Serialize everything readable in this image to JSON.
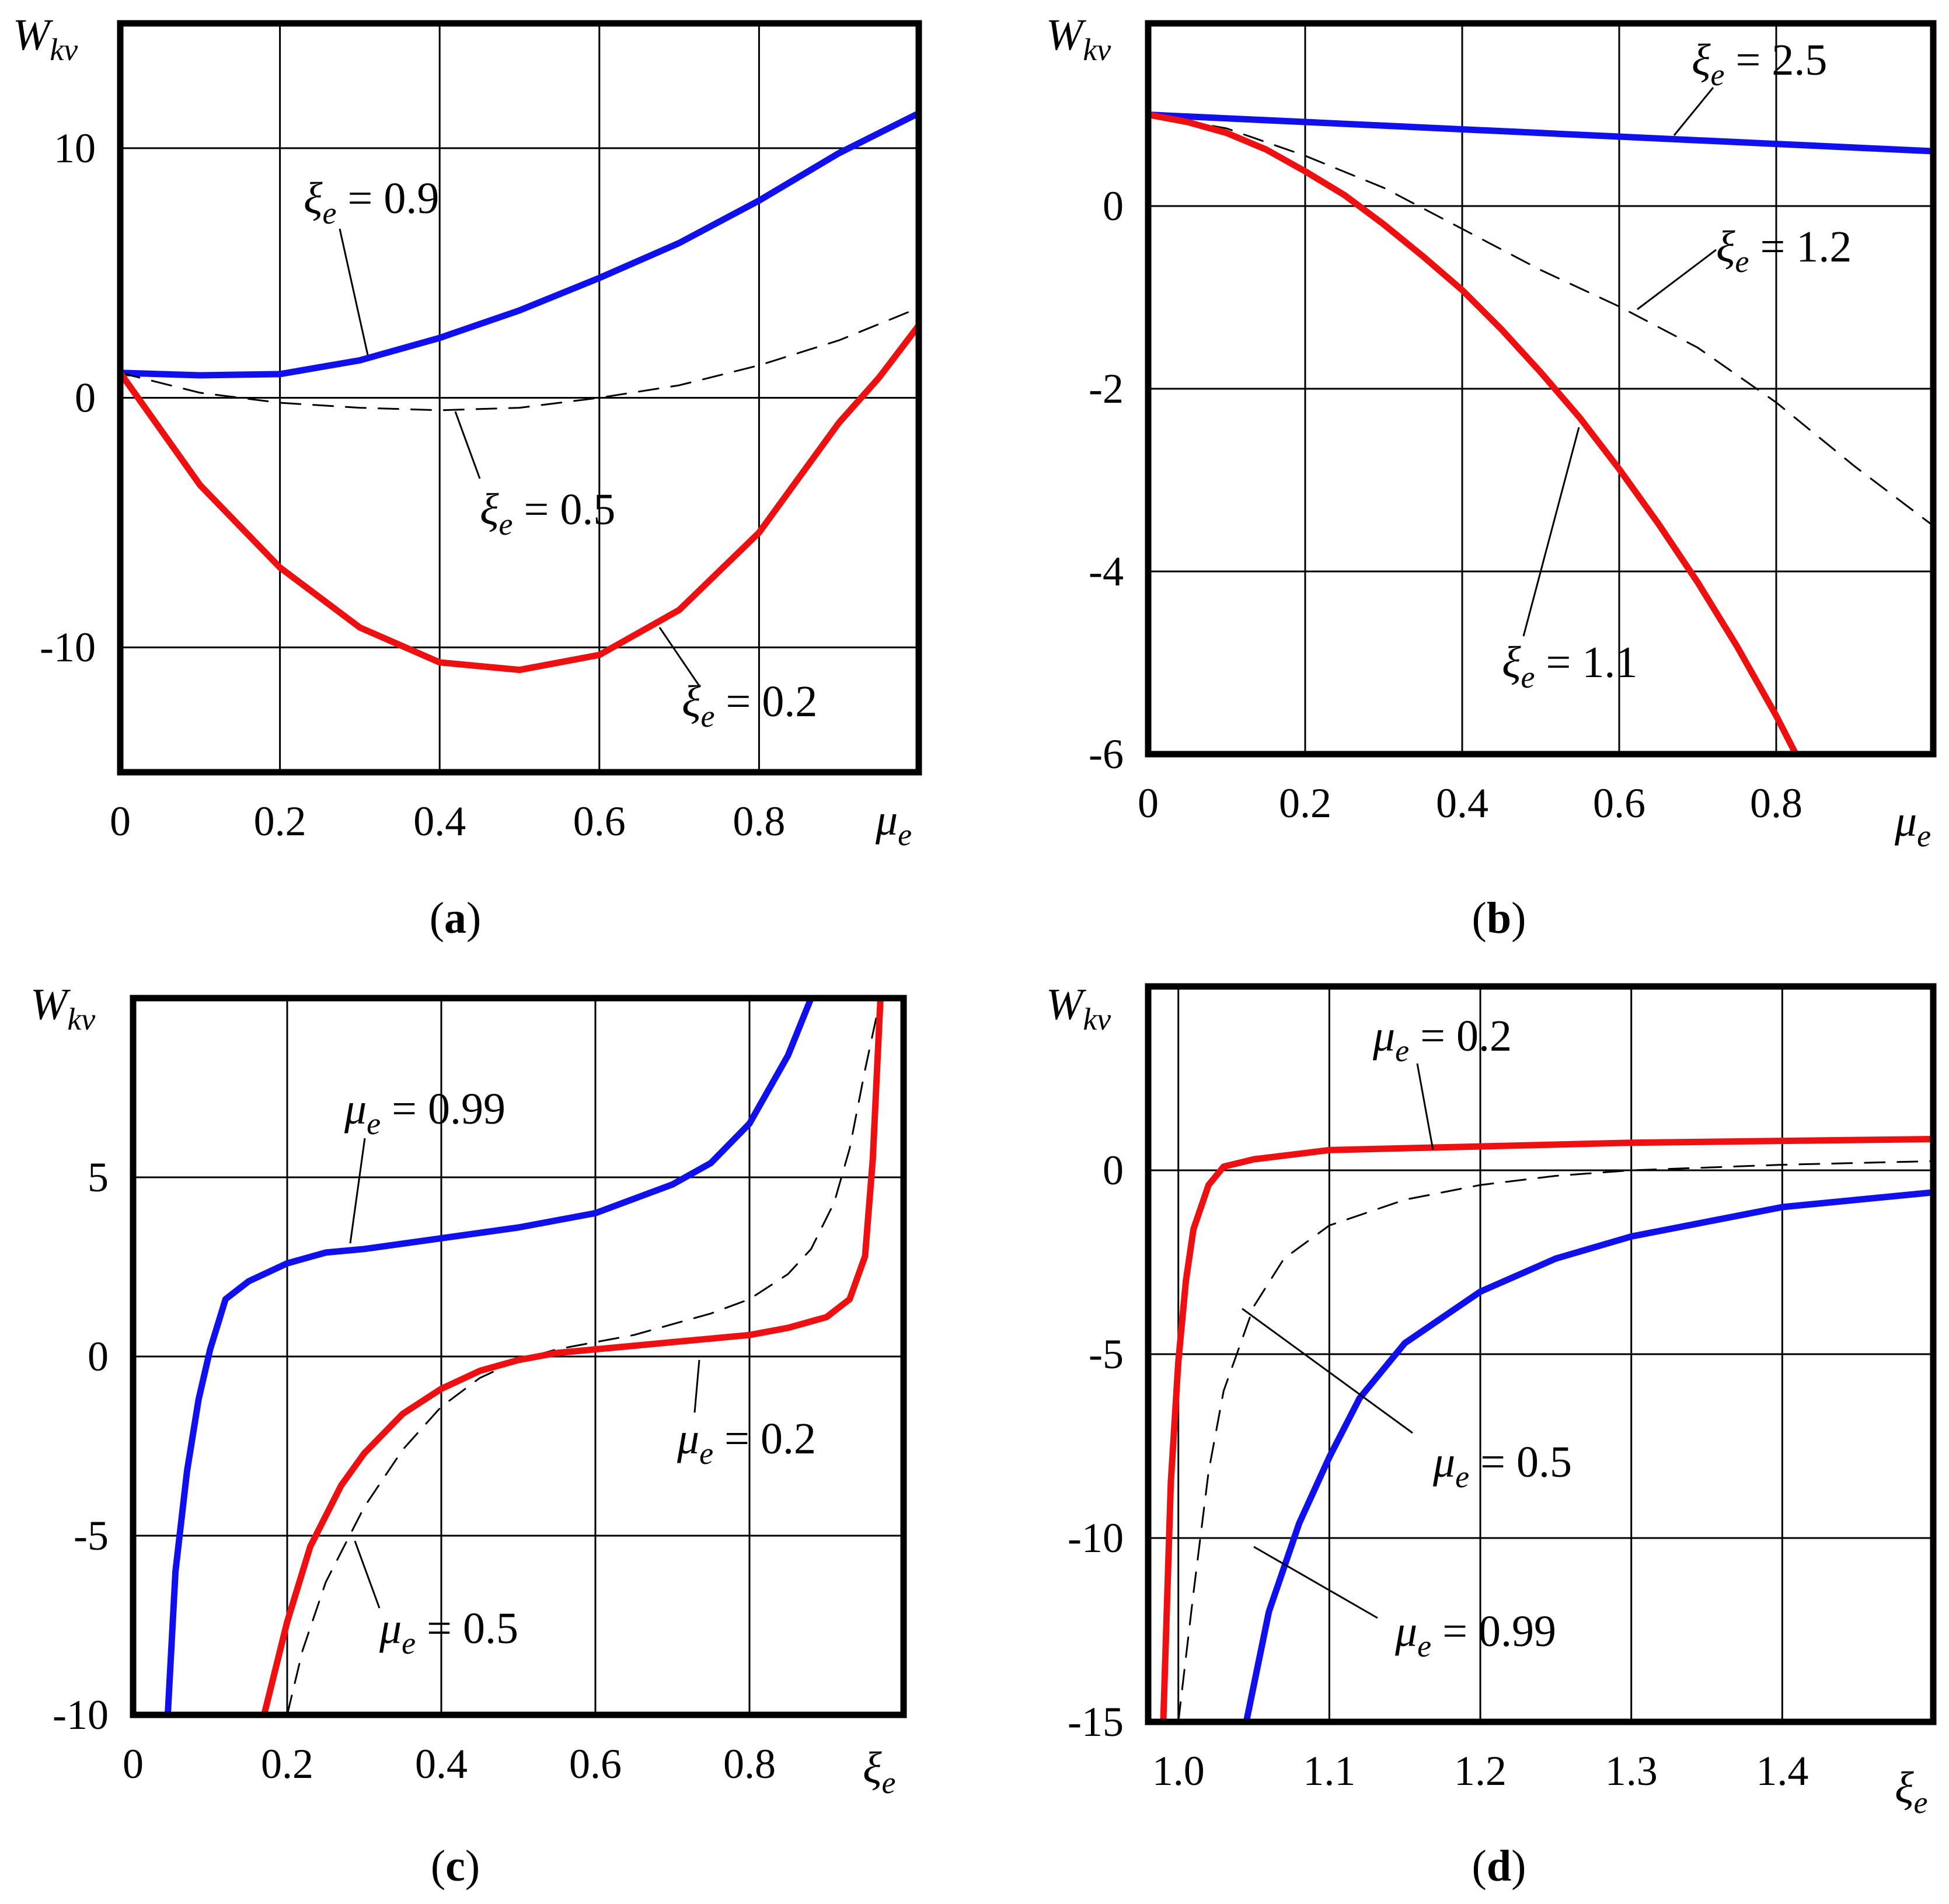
{
  "colors": {
    "blue": "#1010ee",
    "red": "#ee1010",
    "black": "#000000"
  },
  "chart_data": [
    {
      "id": "a",
      "type": "line",
      "panel_label": "a",
      "ylabel": {
        "main": "W",
        "sub": "kv"
      },
      "xlabel": {
        "main": "μ",
        "sub": "e"
      },
      "xlim": [
        0,
        1
      ],
      "ylim": [
        -15,
        15
      ],
      "xticks": [
        0,
        0.2,
        0.4,
        0.6,
        0.8
      ],
      "xtick_labels": [
        "0",
        "0.2",
        "0.4",
        "0.6",
        "0.8"
      ],
      "yticks": [
        -10,
        0,
        10
      ],
      "ytick_labels": [
        "-10",
        "0",
        "10"
      ],
      "grid": true,
      "series": [
        {
          "name": "ξe = 0.9",
          "color": "blue",
          "dash": false,
          "x": [
            0,
            0.1,
            0.2,
            0.3,
            0.4,
            0.5,
            0.6,
            0.7,
            0.8,
            0.9,
            1.0
          ],
          "y": [
            1.0,
            0.9,
            0.95,
            1.5,
            2.4,
            3.5,
            4.8,
            6.2,
            7.9,
            9.8,
            11.4
          ]
        },
        {
          "name": "ξe = 0.5",
          "color": "black",
          "dash": true,
          "x": [
            0,
            0.1,
            0.2,
            0.3,
            0.4,
            0.5,
            0.6,
            0.7,
            0.8,
            0.9,
            1.0
          ],
          "y": [
            1.0,
            0.2,
            -0.2,
            -0.4,
            -0.5,
            -0.4,
            0.0,
            0.5,
            1.3,
            2.3,
            3.6
          ]
        },
        {
          "name": "ξe = 0.2",
          "color": "red",
          "dash": false,
          "x": [
            0,
            0.1,
            0.2,
            0.3,
            0.4,
            0.5,
            0.6,
            0.7,
            0.8,
            0.9,
            0.95,
            1.0
          ],
          "y": [
            1.0,
            -3.5,
            -6.8,
            -9.2,
            -10.6,
            -10.9,
            -10.3,
            -8.5,
            -5.4,
            -1.0,
            0.8,
            2.9
          ]
        }
      ],
      "annotations": [
        {
          "main": "ξ",
          "sub": "e",
          "rest": " = 0.9"
        },
        {
          "main": "ξ",
          "sub": "e",
          "rest": " = 0.5"
        },
        {
          "main": "ξ",
          "sub": "e",
          "rest": " = 0.2"
        }
      ]
    },
    {
      "id": "b",
      "type": "line",
      "panel_label": "b",
      "ylabel": {
        "main": "W",
        "sub": "kv"
      },
      "xlabel": {
        "main": "μ",
        "sub": "e"
      },
      "xlim": [
        0,
        1
      ],
      "ylim": [
        -6,
        2
      ],
      "xticks": [
        0,
        0.2,
        0.4,
        0.6,
        0.8
      ],
      "xtick_labels": [
        "0",
        "0.2",
        "0.4",
        "0.6",
        "0.8"
      ],
      "yticks": [
        -6,
        -4,
        -2,
        0
      ],
      "ytick_labels": [
        "-6",
        "-4",
        "-2",
        "0"
      ],
      "grid": true,
      "series": [
        {
          "name": "ξe = 2.5",
          "color": "blue",
          "dash": false,
          "x": [
            0,
            0.5,
            1.0
          ],
          "y": [
            1.0,
            0.8,
            0.6
          ]
        },
        {
          "name": "ξe = 1.2",
          "color": "black",
          "dash": true,
          "x": [
            0,
            0.1,
            0.2,
            0.3,
            0.4,
            0.5,
            0.6,
            0.7,
            0.8,
            0.9,
            1.0
          ],
          "y": [
            1.0,
            0.85,
            0.55,
            0.2,
            -0.25,
            -0.7,
            -1.1,
            -1.55,
            -2.15,
            -2.85,
            -3.5
          ]
        },
        {
          "name": "ξe = 1.1",
          "color": "red",
          "dash": false,
          "x": [
            0,
            0.05,
            0.1,
            0.15,
            0.2,
            0.25,
            0.3,
            0.35,
            0.4,
            0.45,
            0.5,
            0.55,
            0.6,
            0.65,
            0.7,
            0.75,
            0.8,
            0.825
          ],
          "y": [
            1.0,
            0.92,
            0.8,
            0.62,
            0.38,
            0.12,
            -0.2,
            -0.55,
            -0.92,
            -1.35,
            -1.82,
            -2.32,
            -2.88,
            -3.48,
            -4.12,
            -4.82,
            -5.58,
            -6.0
          ]
        }
      ],
      "annotations": [
        {
          "main": "ξ",
          "sub": "e",
          "rest": " = 2.5"
        },
        {
          "main": "ξ",
          "sub": "e",
          "rest": " = 1.2"
        },
        {
          "main": "ξ",
          "sub": "e",
          "rest": " = 1.1"
        }
      ]
    },
    {
      "id": "c",
      "type": "line",
      "panel_label": "c",
      "ylabel": {
        "main": "W",
        "sub": "kv"
      },
      "xlabel": {
        "main": "ξ",
        "sub": "e"
      },
      "xlim": [
        0,
        1
      ],
      "ylim": [
        -10,
        10
      ],
      "xticks": [
        0,
        0.2,
        0.4,
        0.6,
        0.8
      ],
      "xtick_labels": [
        "0",
        "0.2",
        "0.4",
        "0.6",
        "0.8"
      ],
      "yticks": [
        -10,
        -5,
        0,
        5
      ],
      "ytick_labels": [
        "-10",
        "-5",
        "0",
        "5"
      ],
      "grid": true,
      "series": [
        {
          "name": "μe = 0.99",
          "color": "blue",
          "dash": false,
          "x": [
            0.045,
            0.055,
            0.07,
            0.085,
            0.1,
            0.12,
            0.15,
            0.2,
            0.25,
            0.3,
            0.4,
            0.5,
            0.6,
            0.7,
            0.75,
            0.8,
            0.85,
            0.88
          ],
          "y": [
            -10,
            -6,
            -3.2,
            -1.2,
            0.2,
            1.6,
            2.1,
            2.6,
            2.9,
            3.0,
            3.3,
            3.6,
            4.0,
            4.8,
            5.4,
            6.5,
            8.4,
            10
          ]
        },
        {
          "name": "μe = 0.5",
          "color": "black",
          "dash": true,
          "x": [
            0.2,
            0.22,
            0.25,
            0.3,
            0.35,
            0.4,
            0.45,
            0.5,
            0.55,
            0.6,
            0.65,
            0.7,
            0.75,
            0.8,
            0.85,
            0.88,
            0.91,
            0.93,
            0.95,
            0.97
          ],
          "y": [
            -10,
            -8.2,
            -6.3,
            -4.2,
            -2.6,
            -1.4,
            -0.6,
            -0.1,
            0.2,
            0.4,
            0.6,
            0.9,
            1.2,
            1.6,
            2.3,
            3.0,
            4.3,
            5.8,
            8.0,
            10
          ]
        },
        {
          "name": "μe = 0.2",
          "color": "red",
          "dash": false,
          "x": [
            0.17,
            0.2,
            0.23,
            0.27,
            0.3,
            0.35,
            0.4,
            0.45,
            0.5,
            0.55,
            0.6,
            0.65,
            0.7,
            0.75,
            0.8,
            0.85,
            0.9,
            0.93,
            0.95,
            0.96,
            0.97
          ],
          "y": [
            -10,
            -7.4,
            -5.3,
            -3.6,
            -2.7,
            -1.6,
            -0.9,
            -0.4,
            -0.1,
            0.1,
            0.2,
            0.3,
            0.4,
            0.5,
            0.6,
            0.8,
            1.1,
            1.6,
            2.8,
            5.5,
            10
          ]
        }
      ],
      "annotations": [
        {
          "main": "μ",
          "sub": "e",
          "rest": " = 0.99"
        },
        {
          "main": "μ",
          "sub": "e",
          "rest": " = 0.2"
        },
        {
          "main": "μ",
          "sub": "e",
          "rest": " = 0.5"
        }
      ]
    },
    {
      "id": "d",
      "type": "line",
      "panel_label": "d",
      "ylabel": {
        "main": "W",
        "sub": "kv"
      },
      "xlabel": {
        "main": "ξ",
        "sub": "e"
      },
      "xlim": [
        0.98,
        1.5
      ],
      "ylim": [
        -15,
        5
      ],
      "xticks": [
        1.0,
        1.1,
        1.2,
        1.3,
        1.4
      ],
      "xtick_labels": [
        "1.0",
        "1.1",
        "1.2",
        "1.3",
        "1.4"
      ],
      "yticks": [
        -15,
        -10,
        -5,
        0
      ],
      "ytick_labels": [
        "-15",
        "-10",
        "-5",
        "0"
      ],
      "grid": true,
      "series": [
        {
          "name": "μe = 0.2",
          "color": "red",
          "dash": false,
          "x": [
            0.99,
            0.995,
            1.0,
            1.005,
            1.01,
            1.02,
            1.03,
            1.05,
            1.08,
            1.1,
            1.2,
            1.3,
            1.4,
            1.5
          ],
          "y": [
            -15,
            -8.5,
            -5.2,
            -3.0,
            -1.6,
            -0.4,
            0.1,
            0.3,
            0.45,
            0.55,
            0.65,
            0.75,
            0.8,
            0.85
          ]
        },
        {
          "name": "μe = 0.5",
          "color": "black",
          "dash": true,
          "x": [
            1.0,
            1.01,
            1.02,
            1.03,
            1.05,
            1.07,
            1.1,
            1.15,
            1.2,
            1.25,
            1.3,
            1.4,
            1.5
          ],
          "y": [
            -15,
            -11.5,
            -8.2,
            -6.0,
            -3.7,
            -2.4,
            -1.5,
            -0.8,
            -0.4,
            -0.15,
            0.0,
            0.15,
            0.25
          ]
        },
        {
          "name": "μe = 0.99",
          "color": "blue",
          "dash": false,
          "x": [
            1.045,
            1.06,
            1.08,
            1.1,
            1.12,
            1.15,
            1.2,
            1.25,
            1.3,
            1.35,
            1.4,
            1.45,
            1.5
          ],
          "y": [
            -15,
            -12.0,
            -9.6,
            -7.8,
            -6.2,
            -4.7,
            -3.3,
            -2.4,
            -1.8,
            -1.4,
            -1.0,
            -0.8,
            -0.6
          ]
        }
      ],
      "annotations": [
        {
          "main": "μ",
          "sub": "e",
          "rest": " = 0.2"
        },
        {
          "main": "μ",
          "sub": "e",
          "rest": " = 0.5"
        },
        {
          "main": "μ",
          "sub": "e",
          "rest": " = 0.99"
        }
      ]
    }
  ]
}
